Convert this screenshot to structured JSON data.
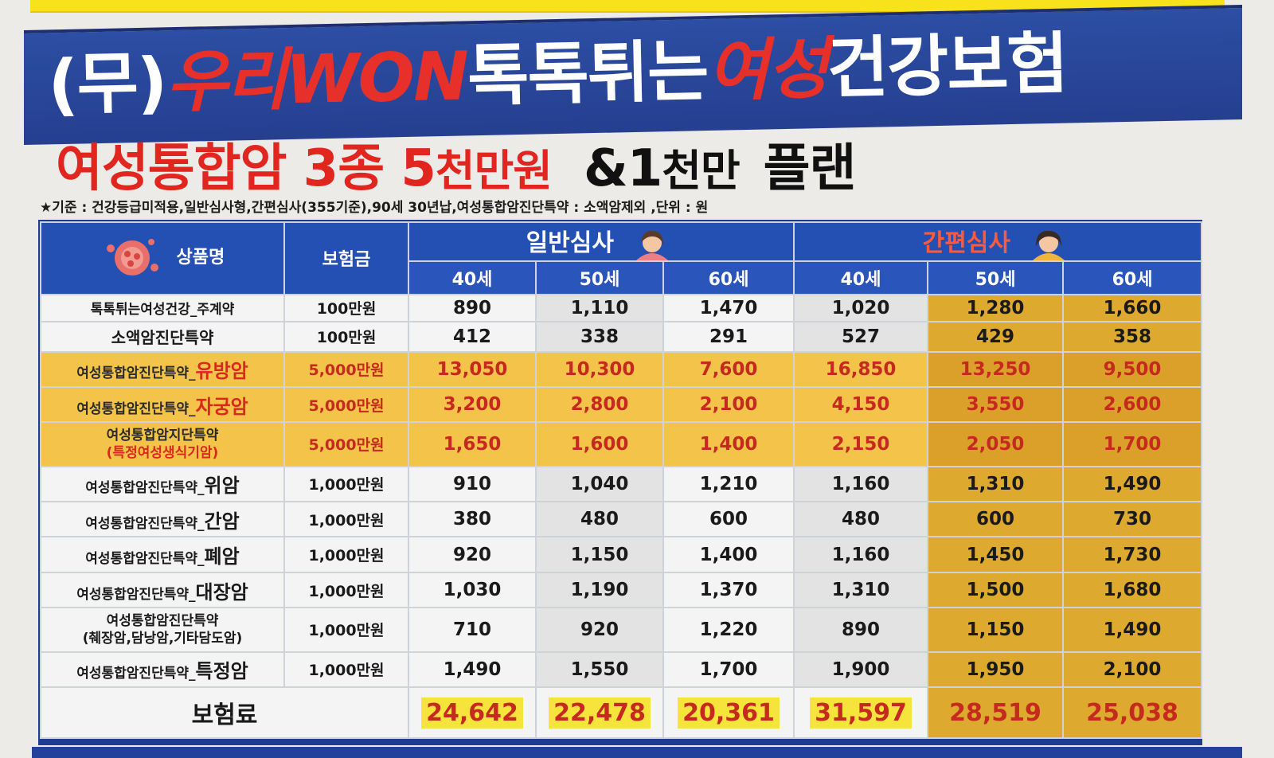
{
  "title": {
    "part1": "(무)",
    "part2": "우리WON",
    "part3": "톡톡튀는",
    "part4": "여성",
    "part5": "건강보험"
  },
  "subtitle": {
    "a": "여성통합암 3종 5",
    "b": "천만원",
    "c": "&1",
    "d": "천만",
    "e": " 플랜"
  },
  "criteria": "★기준 : 건강등급미적용,일반심사형,간편심사(355기준),90세 30년납,여성통합암진단특약 : 소액암제외 ,단위 : 원",
  "table": {
    "col_product": "상품명",
    "col_amount": "보험금",
    "group_general": "일반심사",
    "group_simple": "간편심사",
    "ages": [
      "40세",
      "50세",
      "60세",
      "40세",
      "50세",
      "60세"
    ],
    "rows": [
      {
        "name": "톡톡튀는여성건강_주계약",
        "amount": "100만원",
        "values": [
          "890",
          "1,110",
          "1,470",
          "1,020",
          "1,280",
          "1,660"
        ]
      },
      {
        "name": "소액암진단특약",
        "amount": "100만원",
        "values": [
          "412",
          "338",
          "291",
          "527",
          "429",
          "358"
        ]
      },
      {
        "name_small": "여성통합암진단특약_",
        "name_big": "유방암",
        "amount": "5,000만원",
        "values": [
          "13,050",
          "10,300",
          "7,600",
          "16,850",
          "13,250",
          "9,500"
        ]
      },
      {
        "name_small": "여성통합암진단특약_",
        "name_big": "자궁암",
        "amount": "5,000만원",
        "values": [
          "3,200",
          "2,800",
          "2,100",
          "4,150",
          "3,550",
          "2,600"
        ]
      },
      {
        "name_line1": "여성통합암지단특약",
        "name_line2": "(특정여성생식기암)",
        "amount": "5,000만원",
        "values": [
          "1,650",
          "1,600",
          "1,400",
          "2,150",
          "2,050",
          "1,700"
        ]
      },
      {
        "name_small": "여성통합암진단특약_",
        "name_big": "위암",
        "amount": "1,000만원",
        "values": [
          "910",
          "1,040",
          "1,210",
          "1,160",
          "1,310",
          "1,490"
        ]
      },
      {
        "name_small": "여성통합암진단특약_",
        "name_big": "간암",
        "amount": "1,000만원",
        "values": [
          "380",
          "480",
          "600",
          "480",
          "600",
          "730"
        ]
      },
      {
        "name_small": "여성통합암진단특약_",
        "name_big": "폐암",
        "amount": "1,000만원",
        "values": [
          "920",
          "1,150",
          "1,400",
          "1,160",
          "1,450",
          "1,730"
        ]
      },
      {
        "name_small": "여성통합암진단특약_",
        "name_big": "대장암",
        "amount": "1,000만원",
        "values": [
          "1,030",
          "1,190",
          "1,370",
          "1,310",
          "1,500",
          "1,680"
        ]
      },
      {
        "name_line1": "여성통합암진단특약",
        "name_line2": "(췌장암,담낭암,기타담도암)",
        "amount": "1,000만원",
        "values": [
          "710",
          "920",
          "1,220",
          "890",
          "1,150",
          "1,490"
        ]
      },
      {
        "name_small": "여성통합암진단특약_",
        "name_big": "특정암",
        "amount": "1,000만원",
        "values": [
          "1,490",
          "1,550",
          "1,700",
          "1,900",
          "1,950",
          "2,100"
        ]
      }
    ],
    "total_label": "보험료",
    "totals": [
      "24,642",
      "22,478",
      "20,361",
      "31,597",
      "28,519",
      "25,038"
    ]
  }
}
